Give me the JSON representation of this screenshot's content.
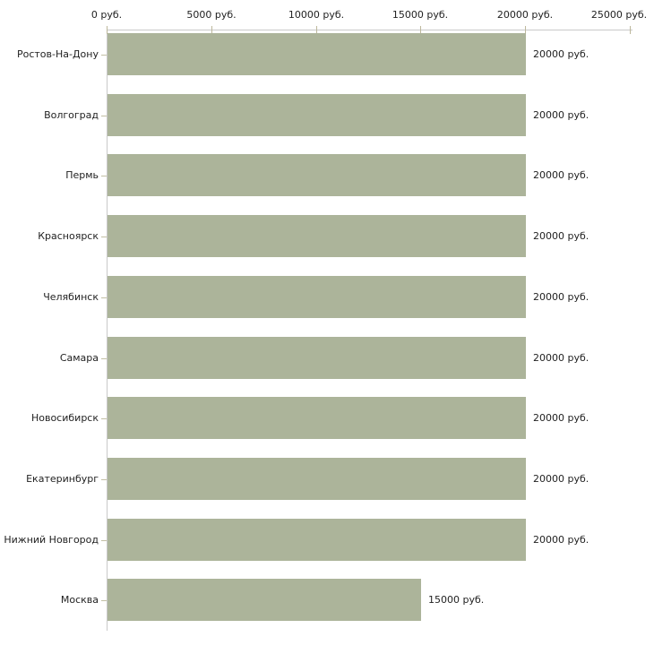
{
  "chart_data": {
    "type": "bar",
    "orientation": "horizontal",
    "title": "",
    "categories": [
      "Ростов-На-Дону",
      "Волгоград",
      "Пермь",
      "Красноярск",
      "Челябинск",
      "Самара",
      "Новосибирск",
      "Екатеринбург",
      "Нижний Новгород",
      "Москва"
    ],
    "values": [
      20000,
      20000,
      20000,
      20000,
      20000,
      20000,
      20000,
      20000,
      20000,
      15000
    ],
    "value_labels": [
      "20000 руб.",
      "20000 руб.",
      "20000 руб.",
      "20000 руб.",
      "20000 руб.",
      "20000 руб.",
      "20000 руб.",
      "20000 руб.",
      "20000 руб.",
      "15000 руб."
    ],
    "x_axis": {
      "position": "top",
      "range": [
        0,
        25000
      ],
      "tick_values": [
        0,
        5000,
        10000,
        15000,
        20000,
        25000
      ],
      "tick_labels": [
        "0 руб.",
        "5000 руб.",
        "10000 руб.",
        "15000 руб.",
        "20000 руб.",
        "25000 руб."
      ],
      "unit": "руб."
    },
    "grid": false,
    "legend": false,
    "colors": {
      "bar": "#acb49a",
      "axis_line": "#c9c9c9",
      "x_tick_mark": "#bdb89c",
      "category_tick_mark": "#c2bfa4",
      "text": "#222222",
      "background": "#ffffff"
    }
  }
}
